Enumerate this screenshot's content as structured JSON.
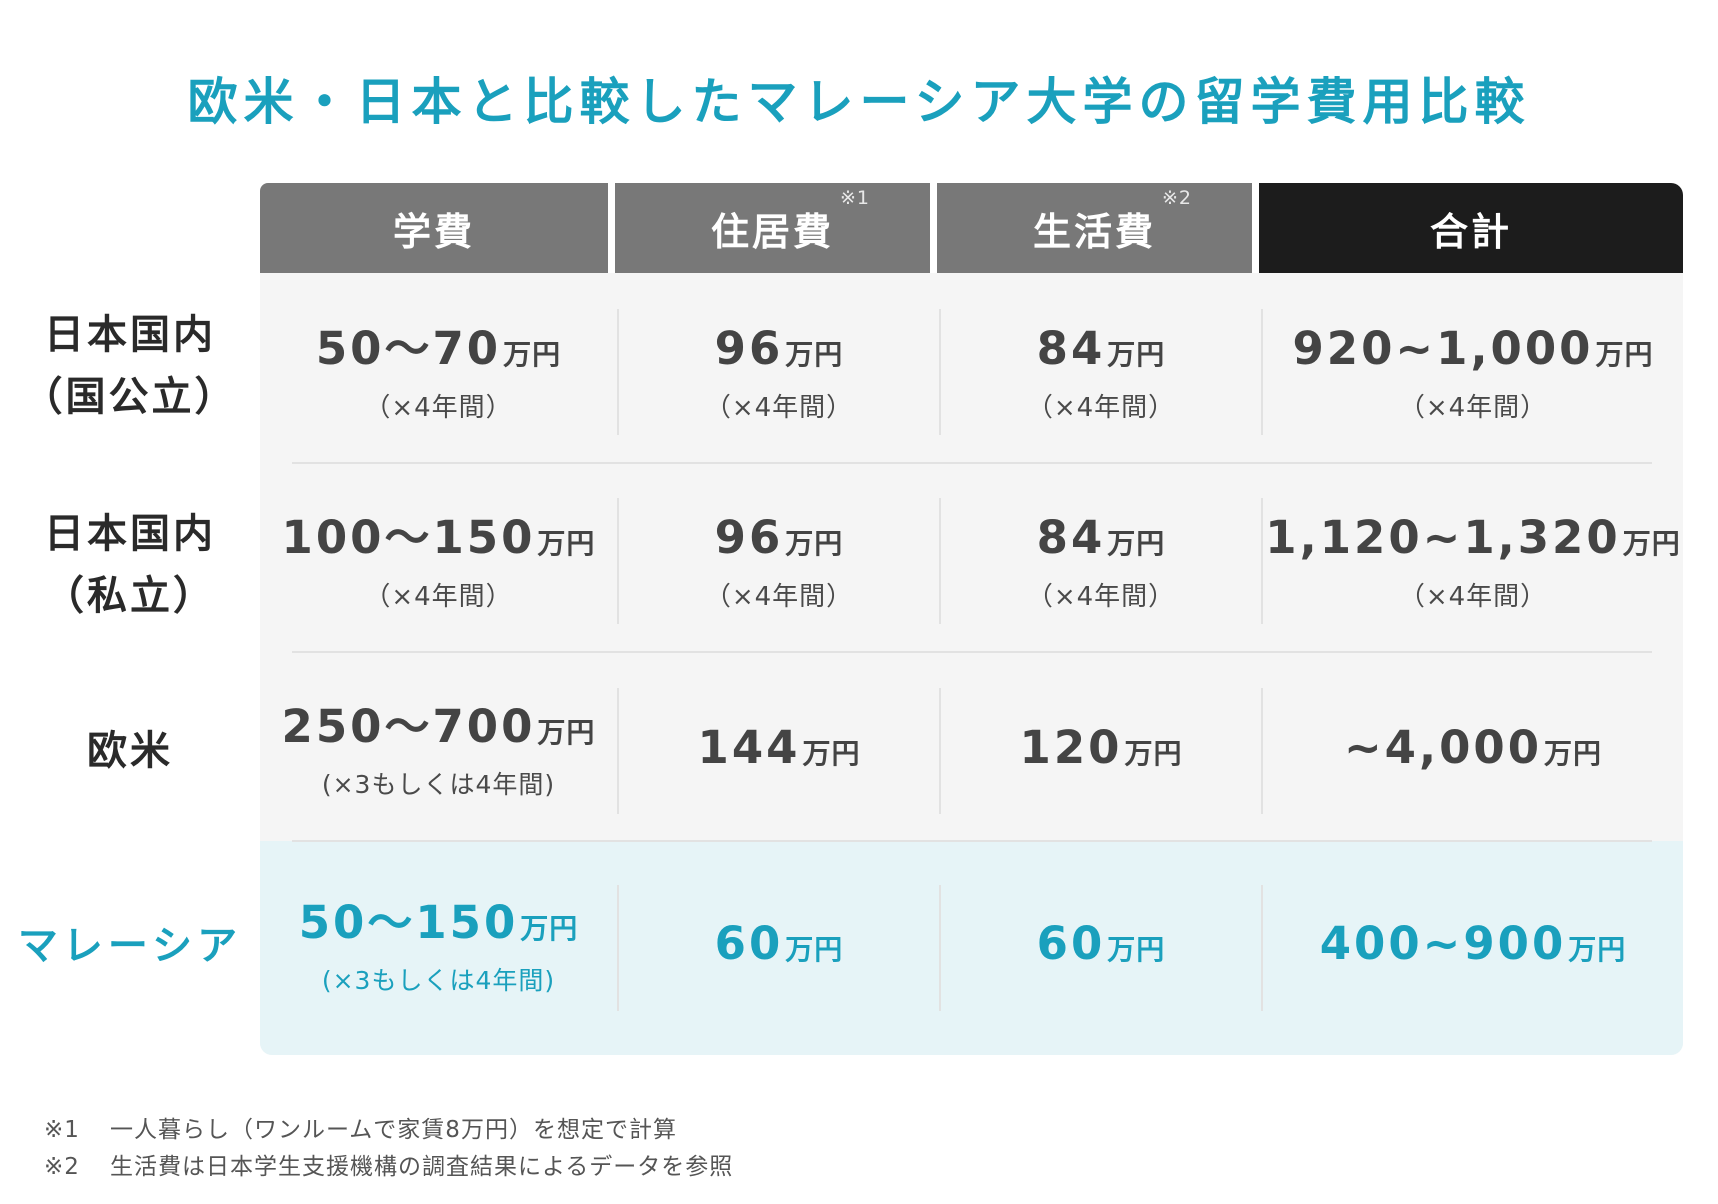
{
  "title": "欧米・日本と比較したマレーシア大学の留学費用比較",
  "columns": [
    {
      "label": "学費",
      "sup": ""
    },
    {
      "label": "住居費",
      "sup": "※1"
    },
    {
      "label": "生活費",
      "sup": "※2"
    },
    {
      "label": "合計",
      "sup": ""
    }
  ],
  "rows": [
    {
      "label_line1": "日本国内",
      "label_line2": "（国公立）",
      "cells": [
        {
          "value": "50〜70",
          "unit": "万円",
          "note": "（×4年間）"
        },
        {
          "value": "96",
          "unit": "万円",
          "note": "（×4年間）"
        },
        {
          "value": "84",
          "unit": "万円",
          "note": "（×4年間）"
        },
        {
          "value": "920~1,000",
          "unit": "万円",
          "note": "（×4年間）"
        }
      ]
    },
    {
      "label_line1": "日本国内",
      "label_line2": "（私立）",
      "cells": [
        {
          "value": "100〜150",
          "unit": "万円",
          "note": "（×4年間）"
        },
        {
          "value": "96",
          "unit": "万円",
          "note": "（×4年間）"
        },
        {
          "value": "84",
          "unit": "万円",
          "note": "（×4年間）"
        },
        {
          "value": "1,120~1,320",
          "unit": "万円",
          "note": "（×4年間）"
        }
      ]
    },
    {
      "label_line1": "欧米",
      "label_line2": "",
      "cells": [
        {
          "value": "250〜700",
          "unit": "万円",
          "note": "(×3もしくは4年間)"
        },
        {
          "value": "144",
          "unit": "万円",
          "note": ""
        },
        {
          "value": "120",
          "unit": "万円",
          "note": ""
        },
        {
          "value": "~4,000",
          "unit": "万円",
          "note": ""
        }
      ]
    },
    {
      "label_line1": "マレーシア",
      "label_line2": "",
      "cells": [
        {
          "value": "50〜150",
          "unit": "万円",
          "note": "(×3もしくは4年間)"
        },
        {
          "value": "60",
          "unit": "万円",
          "note": ""
        },
        {
          "value": "60",
          "unit": "万円",
          "note": ""
        },
        {
          "value": "400~900",
          "unit": "万円",
          "note": ""
        }
      ]
    }
  ],
  "footnotes": [
    {
      "mark": "※1",
      "text": "一人暮らし（ワンルームで家賃8万円）を想定で計算"
    },
    {
      "mark": "※2",
      "text": "生活費は日本学生支援機構の調査結果によるデータを参照"
    }
  ],
  "colors": {
    "accent": "#1aa0bd",
    "header_gray": "#787878",
    "header_dark": "#1c1c1c",
    "body_bg": "#f5f5f5",
    "malaysia_bg": "#e6f4f7"
  }
}
